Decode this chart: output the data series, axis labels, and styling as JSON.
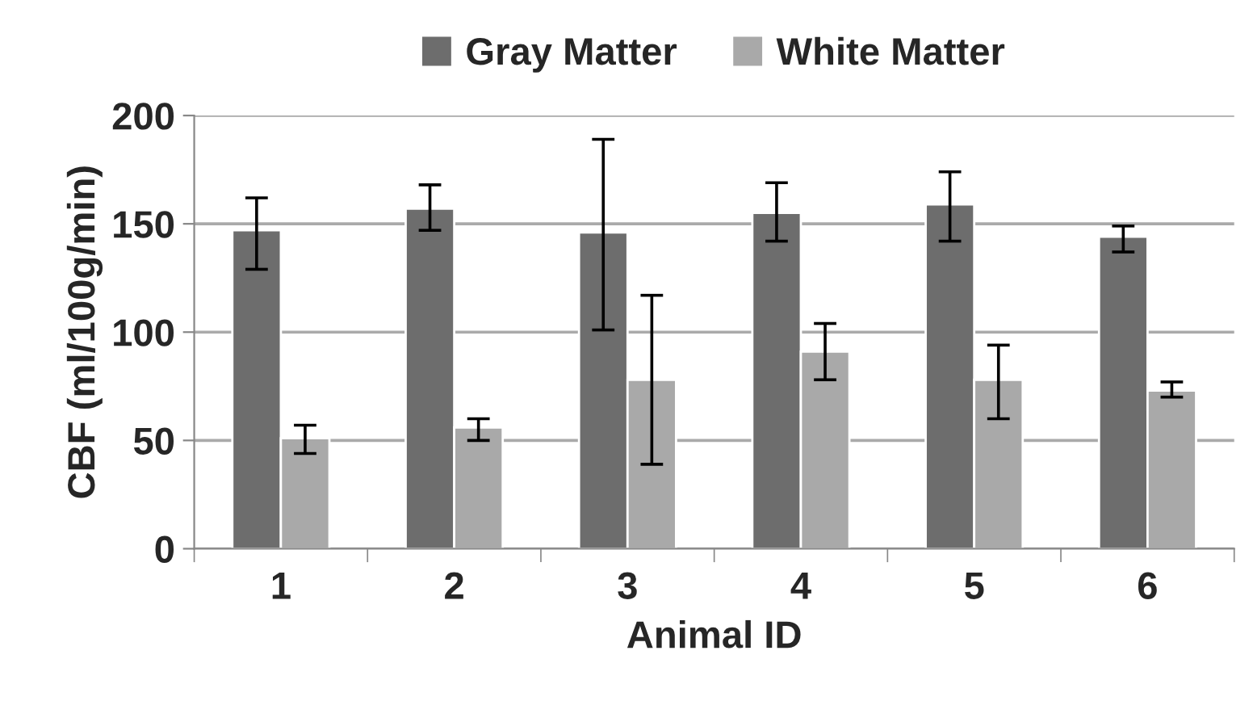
{
  "chart_data": {
    "type": "bar",
    "xlabel": "Animal ID",
    "ylabel": "CBF (ml/100g/min)",
    "categories": [
      "1",
      "2",
      "3",
      "4",
      "5",
      "6"
    ],
    "series": [
      {
        "name": "Gray Matter",
        "color": "#6d6d6d",
        "values": [
          147,
          157,
          146,
          155,
          159,
          144
        ],
        "errors": [
          [
            129,
            162
          ],
          [
            147,
            168
          ],
          [
            101,
            189
          ],
          [
            142,
            169
          ],
          [
            142,
            174
          ],
          [
            137,
            149
          ]
        ]
      },
      {
        "name": "White Matter",
        "color": "#a9a9a9",
        "values": [
          51,
          56,
          78,
          91,
          78,
          73
        ],
        "errors": [
          [
            44,
            57
          ],
          [
            50,
            60
          ],
          [
            39,
            117
          ],
          [
            78,
            104
          ],
          [
            60,
            94
          ],
          [
            70,
            77
          ]
        ]
      }
    ],
    "ylim": [
      0,
      200
    ],
    "yticks": [
      0,
      50,
      100,
      150,
      200
    ],
    "grid": "y",
    "legend": "top"
  }
}
